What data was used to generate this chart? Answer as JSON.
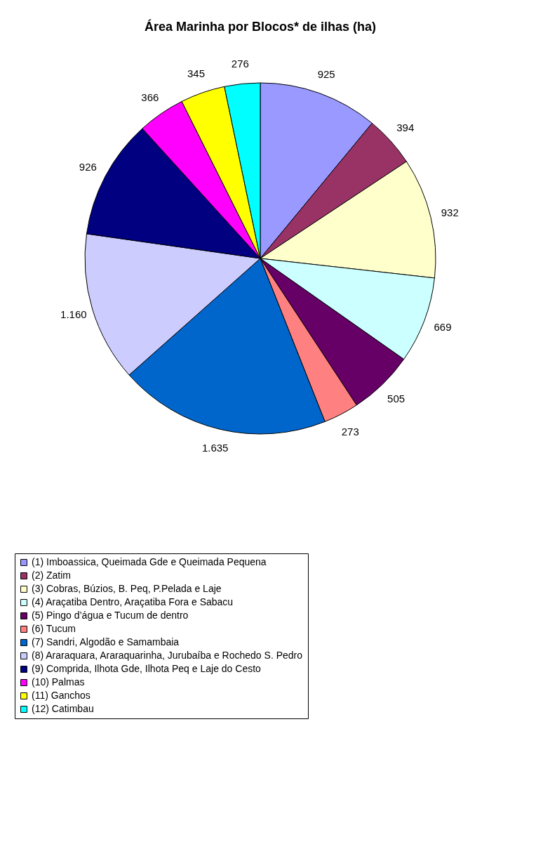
{
  "chart_data": {
    "type": "pie",
    "title": "Área Marinha por Blocos* de ilhas (ha)",
    "categories": [
      "(1) Imboassica, Queimada Gde e Queimada Pequena",
      "(2) Zatim",
      "(3) Cobras, Búzios, B. Peq, P.Pelada e Laje",
      "(4) Araçatiba  Dentro, Araçatiba Fora e Sabacu",
      "(5) Pingo d’água e Tucum de dentro",
      "(6) Tucum",
      "(7) Sandri, Algodão e Samambaia",
      "(8) Araraquara, Araraquarinha, Jurubaíba e Rochedo S. Pedro",
      "(9) Comprida, Ilhota Gde, Ilhota Peq e Laje do Cesto",
      "(10) Palmas",
      "(11) Ganchos",
      "(12) Catimbau"
    ],
    "values": [
      925,
      394,
      932,
      669,
      505,
      273,
      1635,
      1160,
      926,
      366,
      345,
      276
    ],
    "value_labels": [
      "925",
      "394",
      "932",
      "669",
      "505",
      "273",
      "1.635",
      "1.160",
      "926",
      "366",
      "345",
      "276"
    ],
    "colors": [
      "#9999ff",
      "#993366",
      "#ffffcc",
      "#ccffff",
      "#660066",
      "#ff8080",
      "#0066cc",
      "#ccccff",
      "#000080",
      "#ff00ff",
      "#ffff00",
      "#00ffff"
    ],
    "legend": "bottom"
  }
}
